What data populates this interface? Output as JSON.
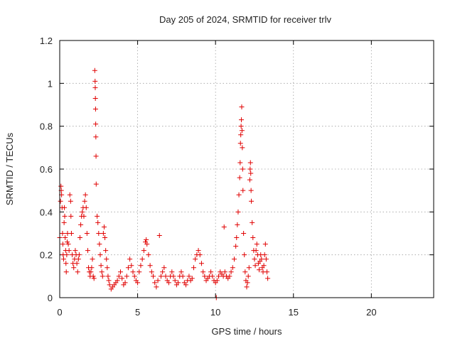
{
  "chart_data": {
    "type": "scatter",
    "title": "Day 205 of 2024, SRMTID for receiver trlv",
    "xlabel": "GPS time / hours",
    "ylabel": "SRMTID / TECUs",
    "xlim": [
      0,
      24
    ],
    "ylim": [
      0,
      1.2
    ],
    "xticks": [
      0,
      5,
      10,
      15,
      20
    ],
    "yticks": [
      0,
      0.2,
      0.4,
      0.6,
      0.8,
      1,
      1.2
    ],
    "xtick_labels": [
      "0",
      "5",
      "10",
      "15",
      "20"
    ],
    "ytick_labels": [
      "0",
      "0.2",
      "0.4",
      "0.6",
      "0.8",
      "1",
      "1.2"
    ],
    "grid": true,
    "marker": "+",
    "color": "#e00000",
    "series": [
      {
        "name": "trlv",
        "points": [
          [
            0.0,
            0.28
          ],
          [
            0.05,
            0.45
          ],
          [
            0.08,
            0.52
          ],
          [
            0.1,
            0.5
          ],
          [
            0.12,
            0.48
          ],
          [
            0.15,
            0.42
          ],
          [
            0.18,
            0.3
          ],
          [
            0.2,
            0.25
          ],
          [
            0.22,
            0.2
          ],
          [
            0.25,
            0.18
          ],
          [
            0.28,
            0.35
          ],
          [
            0.3,
            0.42
          ],
          [
            0.32,
            0.38
          ],
          [
            0.35,
            0.28
          ],
          [
            0.38,
            0.22
          ],
          [
            0.4,
            0.16
          ],
          [
            0.42,
            0.12
          ],
          [
            0.45,
            0.2
          ],
          [
            0.48,
            0.26
          ],
          [
            0.5,
            0.3
          ],
          [
            0.55,
            0.25
          ],
          [
            0.6,
            0.22
          ],
          [
            0.65,
            0.48
          ],
          [
            0.7,
            0.45
          ],
          [
            0.72,
            0.38
          ],
          [
            0.75,
            0.3
          ],
          [
            0.8,
            0.2
          ],
          [
            0.85,
            0.16
          ],
          [
            0.9,
            0.14
          ],
          [
            0.95,
            0.18
          ],
          [
            1.0,
            0.22
          ],
          [
            1.05,
            0.2
          ],
          [
            1.1,
            0.16
          ],
          [
            1.15,
            0.12
          ],
          [
            1.2,
            0.18
          ],
          [
            1.25,
            0.2
          ],
          [
            1.3,
            0.28
          ],
          [
            1.35,
            0.34
          ],
          [
            1.4,
            0.38
          ],
          [
            1.45,
            0.4
          ],
          [
            1.5,
            0.42
          ],
          [
            1.55,
            0.38
          ],
          [
            1.6,
            0.45
          ],
          [
            1.65,
            0.48
          ],
          [
            1.7,
            0.42
          ],
          [
            1.75,
            0.3
          ],
          [
            1.8,
            0.22
          ],
          [
            1.85,
            0.14
          ],
          [
            1.9,
            0.12
          ],
          [
            1.95,
            0.1
          ],
          [
            2.0,
            0.12
          ],
          [
            2.05,
            0.14
          ],
          [
            2.1,
            0.18
          ],
          [
            2.15,
            0.1
          ],
          [
            2.2,
            0.09
          ],
          [
            2.25,
            1.06
          ],
          [
            2.27,
            1.01
          ],
          [
            2.28,
            0.98
          ],
          [
            2.29,
            0.93
          ],
          [
            2.3,
            0.88
          ],
          [
            2.31,
            0.81
          ],
          [
            2.32,
            0.75
          ],
          [
            2.33,
            0.66
          ],
          [
            2.34,
            0.53
          ],
          [
            2.4,
            0.38
          ],
          [
            2.45,
            0.35
          ],
          [
            2.5,
            0.3
          ],
          [
            2.55,
            0.25
          ],
          [
            2.6,
            0.2
          ],
          [
            2.65,
            0.15
          ],
          [
            2.7,
            0.12
          ],
          [
            2.75,
            0.1
          ],
          [
            2.8,
            0.3
          ],
          [
            2.85,
            0.33
          ],
          [
            2.9,
            0.28
          ],
          [
            2.95,
            0.22
          ],
          [
            3.0,
            0.18
          ],
          [
            3.05,
            0.14
          ],
          [
            3.1,
            0.1
          ],
          [
            3.15,
            0.08
          ],
          [
            3.2,
            0.06
          ],
          [
            3.3,
            0.04
          ],
          [
            3.4,
            0.05
          ],
          [
            3.5,
            0.06
          ],
          [
            3.6,
            0.07
          ],
          [
            3.7,
            0.08
          ],
          [
            3.8,
            0.1
          ],
          [
            3.9,
            0.12
          ],
          [
            4.0,
            0.09
          ],
          [
            4.1,
            0.06
          ],
          [
            4.2,
            0.07
          ],
          [
            4.3,
            0.1
          ],
          [
            4.4,
            0.14
          ],
          [
            4.5,
            0.18
          ],
          [
            4.6,
            0.15
          ],
          [
            4.7,
            0.12
          ],
          [
            4.8,
            0.1
          ],
          [
            4.9,
            0.08
          ],
          [
            5.0,
            0.07
          ],
          [
            5.1,
            0.12
          ],
          [
            5.2,
            0.15
          ],
          [
            5.3,
            0.18
          ],
          [
            5.4,
            0.22
          ],
          [
            5.5,
            0.26
          ],
          [
            5.55,
            0.27
          ],
          [
            5.6,
            0.25
          ],
          [
            5.7,
            0.2
          ],
          [
            5.8,
            0.15
          ],
          [
            5.9,
            0.12
          ],
          [
            6.0,
            0.1
          ],
          [
            6.1,
            0.07
          ],
          [
            6.2,
            0.05
          ],
          [
            6.3,
            0.08
          ],
          [
            6.4,
            0.29
          ],
          [
            6.5,
            0.1
          ],
          [
            6.6,
            0.12
          ],
          [
            6.7,
            0.14
          ],
          [
            6.8,
            0.1
          ],
          [
            6.9,
            0.08
          ],
          [
            7.0,
            0.07
          ],
          [
            7.1,
            0.1
          ],
          [
            7.2,
            0.12
          ],
          [
            7.3,
            0.1
          ],
          [
            7.4,
            0.08
          ],
          [
            7.5,
            0.06
          ],
          [
            7.6,
            0.07
          ],
          [
            7.7,
            0.1
          ],
          [
            7.8,
            0.12
          ],
          [
            7.9,
            0.1
          ],
          [
            8.0,
            0.07
          ],
          [
            8.1,
            0.06
          ],
          [
            8.2,
            0.08
          ],
          [
            8.3,
            0.1
          ],
          [
            8.4,
            0.08
          ],
          [
            8.5,
            0.09
          ],
          [
            8.6,
            0.14
          ],
          [
            8.7,
            0.18
          ],
          [
            8.8,
            0.2
          ],
          [
            8.9,
            0.22
          ],
          [
            9.0,
            0.2
          ],
          [
            9.1,
            0.16
          ],
          [
            9.2,
            0.12
          ],
          [
            9.3,
            0.1
          ],
          [
            9.4,
            0.08
          ],
          [
            9.5,
            0.09
          ],
          [
            9.6,
            0.1
          ],
          [
            9.7,
            0.12
          ],
          [
            9.8,
            0.1
          ],
          [
            9.9,
            0.08
          ],
          [
            10.0,
            0.07
          ],
          [
            10.05,
            0.0
          ],
          [
            10.1,
            0.08
          ],
          [
            10.2,
            0.1
          ],
          [
            10.3,
            0.12
          ],
          [
            10.4,
            0.11
          ],
          [
            10.5,
            0.1
          ],
          [
            10.55,
            0.33
          ],
          [
            10.6,
            0.12
          ],
          [
            10.7,
            0.1
          ],
          [
            10.8,
            0.09
          ],
          [
            10.9,
            0.1
          ],
          [
            11.0,
            0.12
          ],
          [
            11.1,
            0.14
          ],
          [
            11.2,
            0.18
          ],
          [
            11.3,
            0.24
          ],
          [
            11.35,
            0.28
          ],
          [
            11.4,
            0.34
          ],
          [
            11.45,
            0.4
          ],
          [
            11.5,
            0.48
          ],
          [
            11.55,
            0.56
          ],
          [
            11.58,
            0.63
          ],
          [
            11.6,
            0.72
          ],
          [
            11.62,
            0.76
          ],
          [
            11.64,
            0.8
          ],
          [
            11.66,
            0.83
          ],
          [
            11.68,
            0.89
          ],
          [
            11.7,
            0.78
          ],
          [
            11.72,
            0.7
          ],
          [
            11.74,
            0.6
          ],
          [
            11.76,
            0.5
          ],
          [
            11.8,
            0.3
          ],
          [
            11.85,
            0.2
          ],
          [
            11.9,
            0.12
          ],
          [
            11.95,
            0.08
          ],
          [
            12.0,
            0.05
          ],
          [
            12.05,
            0.07
          ],
          [
            12.1,
            0.1
          ],
          [
            12.15,
            0.14
          ],
          [
            12.2,
            0.55
          ],
          [
            12.22,
            0.6
          ],
          [
            12.24,
            0.63
          ],
          [
            12.26,
            0.58
          ],
          [
            12.28,
            0.5
          ],
          [
            12.3,
            0.45
          ],
          [
            12.35,
            0.35
          ],
          [
            12.4,
            0.28
          ],
          [
            12.45,
            0.22
          ],
          [
            12.5,
            0.18
          ],
          [
            12.55,
            0.15
          ],
          [
            12.6,
            0.22
          ],
          [
            12.65,
            0.25
          ],
          [
            12.7,
            0.2
          ],
          [
            12.75,
            0.16
          ],
          [
            12.8,
            0.13
          ],
          [
            12.85,
            0.17
          ],
          [
            12.9,
            0.2
          ],
          [
            12.95,
            0.18
          ],
          [
            13.0,
            0.14
          ],
          [
            13.05,
            0.12
          ],
          [
            13.1,
            0.15
          ],
          [
            13.15,
            0.2
          ],
          [
            13.2,
            0.25
          ],
          [
            13.25,
            0.18
          ],
          [
            13.3,
            0.12
          ],
          [
            13.35,
            0.09
          ]
        ]
      }
    ]
  }
}
